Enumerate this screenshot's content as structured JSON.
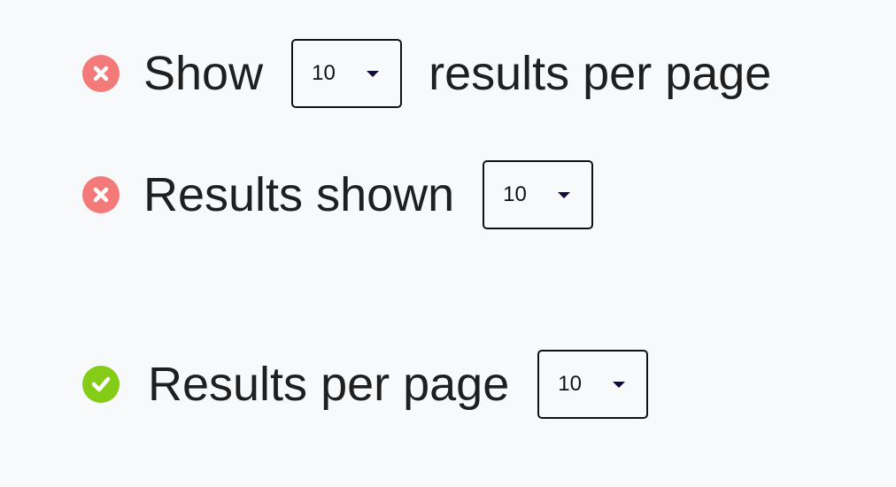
{
  "examples": [
    {
      "status": "incorrect",
      "icon": "x-circle-icon",
      "before": "Show",
      "select_value": "10",
      "after": "results per page"
    },
    {
      "status": "incorrect",
      "icon": "x-circle-icon",
      "before": "Results shown",
      "select_value": "10",
      "after": ""
    },
    {
      "status": "correct",
      "icon": "check-circle-icon",
      "before": "Results per page",
      "select_value": "10",
      "after": ""
    }
  ],
  "colors": {
    "incorrect": "#f47a7a",
    "correct": "#84cc16",
    "background": "#f8f9fb"
  }
}
